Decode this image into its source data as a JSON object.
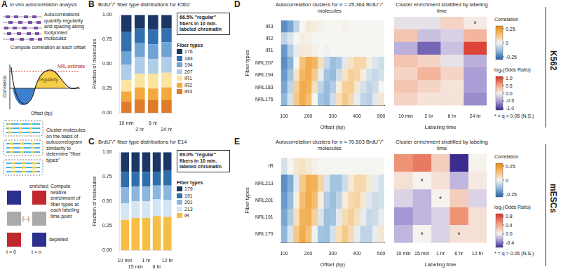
{
  "diagram": {
    "panel": "A",
    "title": "In vivo autocorrelation analysis",
    "step1": "Autocorrelations quantify regularity and spacing along footprinted molecules",
    "step2": "Compute correlation at each offset",
    "nrl_label": "NRL estimate",
    "regularity_label": "regularity",
    "y_label": "Correlation",
    "x_label": "Offset (bp)",
    "step3": "Cluster molecules on the basis of autocorrelogram similarity to determine \"fiber types\"",
    "enriched": "enriched",
    "ellipsis": "[...]",
    "depleted": "depleted",
    "step4": "Compute relative enrichment of fiber types at each labeling time point",
    "t_start": "t = 0",
    "t_end": "t = n"
  },
  "side_labels": [
    "K562",
    "mESCs"
  ],
  "chart_data": [
    {
      "panel": "B",
      "type": "bar",
      "title": "BrdU⁺/⁺ fiber type distributions for K562",
      "categories": [
        "10 min",
        "2 hr",
        "6 hr",
        "24 hr"
      ],
      "stacked": true,
      "grid": false,
      "series": [
        {
          "name": "IR3",
          "color": "#e07b2a",
          "values": [
            0.12,
            0.14,
            0.13,
            0.13
          ]
        },
        {
          "name": "IR2",
          "color": "#f3a93b",
          "values": [
            0.1,
            0.12,
            0.12,
            0.13
          ]
        },
        {
          "name": "IR1",
          "color": "#fbe3a0",
          "values": [
            0.115,
            0.14,
            0.15,
            0.15
          ]
        },
        {
          "name": "207",
          "color": "#aecde9",
          "values": [
            0.16,
            0.17,
            0.15,
            0.16
          ]
        },
        {
          "name": "194",
          "color": "#6fa3d4",
          "values": [
            0.13,
            0.14,
            0.15,
            0.15
          ]
        },
        {
          "name": "183",
          "color": "#3370b0",
          "values": [
            0.2,
            0.15,
            0.15,
            0.14
          ]
        },
        {
          "name": "176",
          "color": "#1b3766",
          "values": [
            0.175,
            0.14,
            0.15,
            0.14
          ]
        }
      ],
      "ylim": [
        0,
        1
      ],
      "yticks": [
        {
          "value": 0,
          "label": "0.00"
        },
        {
          "value": 0.25,
          "label": "0.25"
        },
        {
          "value": 0.5,
          "label": "0.50"
        },
        {
          "value": 0.75,
          "label": "0.75"
        },
        {
          "value": 1,
          "label": "1.00"
        }
      ],
      "y_label": "Fraction of molecules",
      "legend": "right",
      "legend_title": "Fiber types",
      "annotation": "66.5% \"regular\" fibers in 10 min. labeled chromatin"
    },
    {
      "panel": "C",
      "type": "bar",
      "title": "BrdU⁺/⁺ fiber type distributions for E14",
      "categories": [
        "10 min",
        "15 min",
        "1 hr",
        "6 hr",
        "12 hr"
      ],
      "stacked": true,
      "grid": false,
      "series": [
        {
          "name": "IR",
          "color": "#f6be45",
          "values": [
            0.31,
            0.33,
            0.33,
            0.35,
            0.34
          ]
        },
        {
          "name": "213",
          "color": "#d4e5f4",
          "values": [
            0.17,
            0.17,
            0.17,
            0.17,
            0.17
          ]
        },
        {
          "name": "201",
          "color": "#8ab6df",
          "values": [
            0.16,
            0.15,
            0.15,
            0.14,
            0.15
          ]
        },
        {
          "name": "191",
          "color": "#2f6eab",
          "values": [
            0.16,
            0.15,
            0.15,
            0.14,
            0.15
          ]
        },
        {
          "name": "179",
          "color": "#1b3766",
          "values": [
            0.2,
            0.2,
            0.2,
            0.2,
            0.19
          ]
        }
      ],
      "ylim": [
        0,
        1
      ],
      "yticks": [
        {
          "value": 0,
          "label": "0.00"
        },
        {
          "value": 0.25,
          "label": "0.25"
        },
        {
          "value": 0.5,
          "label": "0.50"
        },
        {
          "value": 0.75,
          "label": "0.75"
        },
        {
          "value": 1,
          "label": "1.00"
        }
      ],
      "y_label": "Fraction of molecules",
      "legend": "right",
      "legend_title": "Fiber types",
      "annotation": "69.0% \"regular\" fibers in 10 min. labeled chromatin"
    },
    {
      "panel": "D",
      "type": "heatmap",
      "title": "Autocorrelation clusters for n = 25,364 BrdU⁺/⁺ molecules",
      "x": [
        100,
        125,
        150,
        175,
        200,
        225,
        250,
        275,
        300,
        325,
        350,
        375,
        400,
        425,
        450,
        475,
        500
      ],
      "y": [
        "IR3",
        "IR2",
        "IR1",
        "NRL207",
        "NRL194",
        "NRL183",
        "NRL176"
      ],
      "values": [
        [
          -0.22,
          -0.18,
          -0.08,
          0,
          0.03,
          0.02,
          0.01,
          0,
          0,
          0,
          0.01,
          0,
          0,
          0,
          0,
          0,
          0
        ],
        [
          -0.08,
          -0.04,
          0,
          0.02,
          0.01,
          0,
          0,
          0,
          0,
          0,
          0,
          0,
          0,
          0,
          0,
          0,
          0
        ],
        [
          -0.2,
          -0.1,
          -0.02,
          0.03,
          0.03,
          0.01,
          0,
          -0.01,
          0,
          0,
          0,
          0,
          0,
          0,
          0,
          0,
          0
        ],
        [
          -0.22,
          -0.16,
          0,
          0.14,
          0.2,
          0.17,
          0.06,
          -0.07,
          -0.13,
          -0.11,
          -0.03,
          0.05,
          0.09,
          0.08,
          0.02,
          -0.04,
          -0.06
        ],
        [
          -0.2,
          -0.12,
          0.05,
          0.17,
          0.2,
          0.12,
          -0.02,
          -0.12,
          -0.14,
          -0.06,
          0.05,
          0.1,
          0.09,
          0.02,
          -0.05,
          -0.07,
          -0.05
        ],
        [
          -0.18,
          -0.08,
          0.1,
          0.2,
          0.18,
          0.06,
          -0.08,
          -0.14,
          -0.1,
          0.02,
          0.1,
          0.11,
          0.04,
          -0.05,
          -0.08,
          -0.06,
          0
        ],
        [
          -0.15,
          -0.05,
          0.12,
          0.2,
          0.15,
          0,
          -0.12,
          -0.14,
          -0.06,
          0.06,
          0.12,
          0.08,
          -0.02,
          -0.08,
          -0.09,
          -0.03,
          0.04
        ]
      ],
      "xlim": [
        87.5,
        512.5
      ],
      "xticks": [
        100,
        200,
        300,
        400,
        500
      ],
      "x_label": "Offset (bp)",
      "y_label": "Fiber types",
      "grid": false,
      "colorbar": {
        "title": "Correlation",
        "range": [
          -0.3,
          0.3
        ],
        "ticks": [
          0.25,
          0,
          -0.25
        ]
      }
    },
    {
      "type": "heatmap",
      "title": "Cluster enrichment stratified by labeling time",
      "x": [
        "10 min",
        "2 hr",
        "6 hr",
        "24 hr"
      ],
      "y": [
        "IR3",
        "IR2",
        "IR1",
        "NRL207",
        "NRL194",
        "NRL183",
        "NRL176"
      ],
      "values": [
        [
          -0.1,
          -0.1,
          0.2,
          0.05
        ],
        [
          0.3,
          -0.3,
          -0.2,
          0.4
        ],
        [
          -0.4,
          -0.8,
          -0.3,
          1.0
        ],
        [
          0.3,
          0.2,
          -0.1,
          -0.4
        ],
        [
          0.2,
          0.4,
          0.2,
          -0.5
        ],
        [
          0.3,
          0.2,
          0.1,
          -0.5
        ],
        [
          0.2,
          0.1,
          0.1,
          -0.6
        ]
      ],
      "not_significant": [
        [
          false,
          false,
          false,
          true
        ],
        [
          false,
          false,
          false,
          false
        ],
        [
          false,
          false,
          false,
          false
        ],
        [
          false,
          false,
          false,
          false
        ],
        [
          false,
          false,
          false,
          false
        ],
        [
          false,
          false,
          false,
          false
        ],
        [
          false,
          false,
          false,
          false
        ]
      ],
      "significance_mark": "*",
      "annotation": "* = q > 0.05 (N.S.)",
      "x_label": "Labeling time",
      "tick_labels": "x",
      "grid": false,
      "colorbar": {
        "title": "log₂(Odds Ratio)",
        "range": [
          -1.1,
          1.1
        ],
        "ticks": [
          {
            "value": 1,
            "label": "1.0"
          },
          {
            "value": 0.5,
            "label": "0.5"
          },
          {
            "value": 0,
            "label": "0.0"
          },
          {
            "value": -0.5,
            "label": "-0.5"
          },
          {
            "value": -1,
            "label": "-1.0"
          }
        ]
      }
    },
    {
      "panel": "E",
      "type": "heatmap",
      "title": "Autocorrelation clusters for n = 70,503 BrdU⁺/⁺ molecules",
      "x": [
        100,
        125,
        150,
        175,
        200,
        225,
        250,
        275,
        300,
        325,
        350,
        375,
        400,
        425,
        450,
        475,
        500
      ],
      "y": [
        "IR",
        "NRL213",
        "NRL201",
        "NRL191",
        "NRL179"
      ],
      "values": [
        [
          -0.05,
          0,
          0.04,
          0.05,
          0.03,
          0.01,
          0,
          0,
          0,
          0,
          0,
          0,
          0,
          0,
          0,
          0,
          0
        ],
        [
          -0.22,
          -0.17,
          -0.03,
          0.12,
          0.19,
          0.18,
          0.09,
          -0.04,
          -0.12,
          -0.12,
          -0.06,
          0.03,
          0.08,
          0.08,
          0.03,
          -0.02,
          -0.05
        ],
        [
          -0.2,
          -0.14,
          0.02,
          0.15,
          0.2,
          0.15,
          0.02,
          -0.1,
          -0.13,
          -0.08,
          0.02,
          0.08,
          0.09,
          0.04,
          -0.03,
          -0.06,
          -0.05
        ],
        [
          -0.18,
          -0.1,
          0.06,
          0.18,
          0.19,
          0.1,
          -0.04,
          -0.13,
          -0.12,
          -0.03,
          0.07,
          0.1,
          0.06,
          -0.02,
          -0.07,
          -0.06,
          -0.02
        ],
        [
          -0.15,
          -0.04,
          0.12,
          0.2,
          0.14,
          -0.01,
          -0.12,
          -0.13,
          -0.05,
          0.06,
          0.12,
          0.07,
          -0.02,
          -0.08,
          -0.08,
          -0.02,
          0.04
        ]
      ],
      "xlim": [
        87.5,
        512.5
      ],
      "xticks": [
        100,
        200,
        300,
        400,
        500
      ],
      "x_label": "Offset (bp)",
      "y_label": "Fiber types",
      "grid": false,
      "colorbar": {
        "title": "Correlation",
        "range": [
          -0.3,
          0.3
        ],
        "ticks": [
          0.25,
          0,
          -0.25
        ]
      }
    },
    {
      "type": "heatmap",
      "title": "Cluster enrichment stratified by labeling time",
      "x": [
        "10 min",
        "15 min",
        "1 hr",
        "6 hr",
        "12 hr"
      ],
      "y": [
        "IR",
        "NRL213",
        "NRL201",
        "NRL191",
        "NRL179"
      ],
      "values": [
        [
          0.5,
          0.6,
          0.2,
          -0.6,
          0.0
        ],
        [
          0.1,
          0.0,
          0.1,
          -0.2,
          0.05
        ],
        [
          -0.1,
          -0.2,
          0.0,
          0.2,
          -0.1
        ],
        [
          -0.3,
          -0.2,
          -0.1,
          0.5,
          0.1
        ],
        [
          -0.2,
          0.0,
          -0.1,
          0.1,
          0.1
        ]
      ],
      "not_significant": [
        [
          false,
          false,
          false,
          false,
          false
        ],
        [
          false,
          true,
          false,
          false,
          false
        ],
        [
          false,
          false,
          true,
          false,
          false
        ],
        [
          false,
          false,
          false,
          false,
          false
        ],
        [
          false,
          true,
          false,
          true,
          false
        ]
      ],
      "significance_mark": "*",
      "annotation": "* = q > 0.05 (N.S.)",
      "x_label": "Labeling time",
      "tick_labels": "x",
      "grid": false,
      "colorbar": {
        "title": "log₂(Odds Ratio)",
        "range": [
          -0.6,
          0.9
        ],
        "ticks": [
          {
            "value": 0.8,
            "label": "0.8"
          },
          {
            "value": 0.4,
            "label": "0.4"
          },
          {
            "value": 0,
            "label": "0.0"
          },
          {
            "value": -0.4,
            "label": "-0.4"
          }
        ]
      }
    }
  ]
}
